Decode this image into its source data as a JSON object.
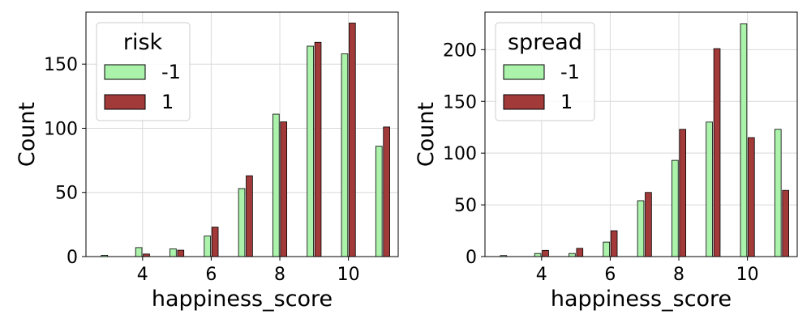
{
  "colors": {
    "neg": "#abf2ab",
    "pos": "#a33a3a",
    "grid": "#d9d9d9"
  },
  "chart_data": [
    {
      "type": "bar",
      "xlabel": "happiness_score",
      "ylabel": "Count",
      "x": [
        3,
        4,
        5,
        6,
        7,
        8,
        9,
        10,
        11
      ],
      "xticks": [
        4,
        6,
        8,
        10
      ],
      "xlim": [
        2.35,
        11.45
      ],
      "ylim": [
        0,
        190.5
      ],
      "yticks": [
        0,
        50,
        100,
        150
      ],
      "legend": {
        "title": "risk",
        "placement": "upper-left"
      },
      "series": [
        {
          "name": "-1",
          "values": [
            1,
            7,
            6,
            16,
            53,
            111,
            164,
            158,
            86
          ]
        },
        {
          "name": "1",
          "values": [
            0,
            2,
            5,
            23,
            63,
            105,
            167,
            182,
            101
          ]
        }
      ]
    },
    {
      "type": "bar",
      "xlabel": "happiness_score",
      "ylabel": "Count",
      "x": [
        3,
        4,
        5,
        6,
        7,
        8,
        9,
        10,
        11
      ],
      "xticks": [
        4,
        6,
        8,
        10
      ],
      "xlim": [
        2.35,
        11.45
      ],
      "ylim": [
        0,
        236.25
      ],
      "yticks": [
        0,
        50,
        100,
        150,
        200
      ],
      "legend": {
        "title": "spread",
        "placement": "upper-left"
      },
      "series": [
        {
          "name": "-1",
          "values": [
            1,
            3,
            3,
            14,
            54,
            93,
            130,
            225,
            123
          ]
        },
        {
          "name": "1",
          "values": [
            0,
            6,
            8,
            25,
            62,
            123,
            201,
            115,
            64
          ]
        }
      ]
    }
  ]
}
